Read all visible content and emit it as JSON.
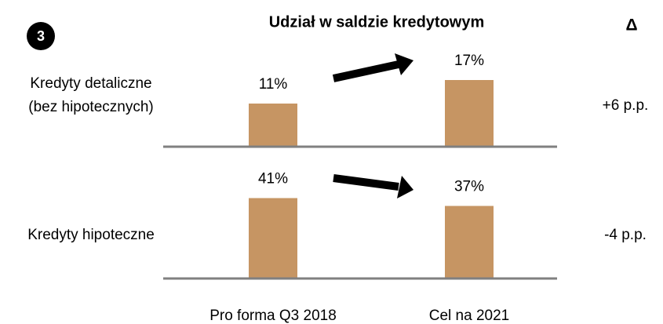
{
  "badge": "3",
  "title": "Udział w saldzie kredytowym",
  "delta_header": "Δ",
  "chart_data": [
    {
      "type": "bar",
      "label": [
        "Kredyty detaliczne",
        "(bez hipotecznych)"
      ],
      "categories": [
        null,
        null
      ],
      "values": [
        11,
        17
      ],
      "value_labels": [
        "11%",
        "17%"
      ],
      "delta": "+6 p.p.",
      "color": "#c69563",
      "ylim": [
        0,
        20
      ]
    },
    {
      "type": "bar",
      "label": [
        "Kredyty hipoteczne"
      ],
      "categories": [
        "Pro forma Q3 2018",
        "Cel na 2021"
      ],
      "values": [
        41,
        37
      ],
      "value_labels": [
        "41%",
        "37%"
      ],
      "delta": "-4 p.p.",
      "color": "#c69563",
      "ylim": [
        0,
        60
      ]
    }
  ]
}
